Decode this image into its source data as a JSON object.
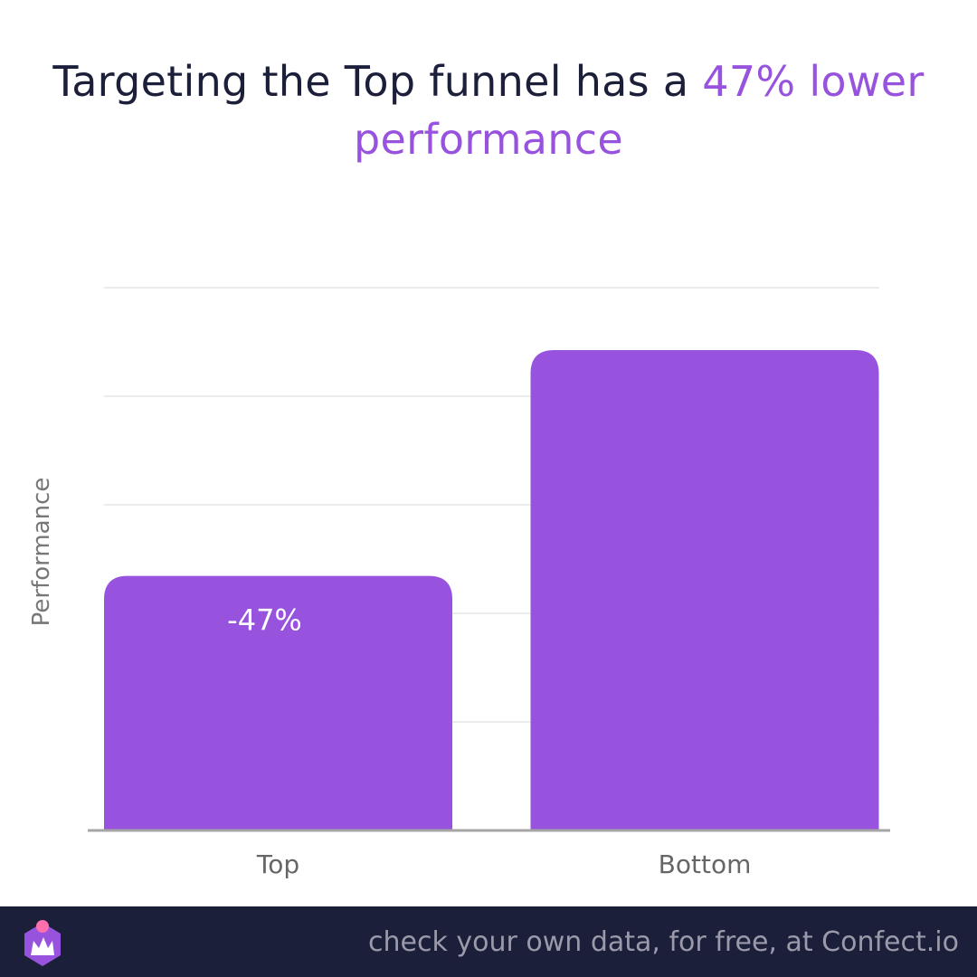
{
  "title": {
    "prefix": "Targeting the Top funnel has a ",
    "highlight": "47% lower performance",
    "highlight_color": "#9753dd"
  },
  "footer": {
    "cta": "check your own data, for free, at Confect.io",
    "logo_icon": "confect-crown-logo-icon"
  },
  "chart_data": {
    "type": "bar",
    "title": "Targeting the Top funnel has a 47% lower performance",
    "xlabel": "",
    "ylabel": "Performance",
    "categories": [
      "Top",
      "Bottom"
    ],
    "values": [
      53,
      100
    ],
    "data_labels": [
      "-47%",
      ""
    ],
    "ylim": [
      0,
      113
    ],
    "grid": true,
    "bar_color": "#9753dd"
  }
}
